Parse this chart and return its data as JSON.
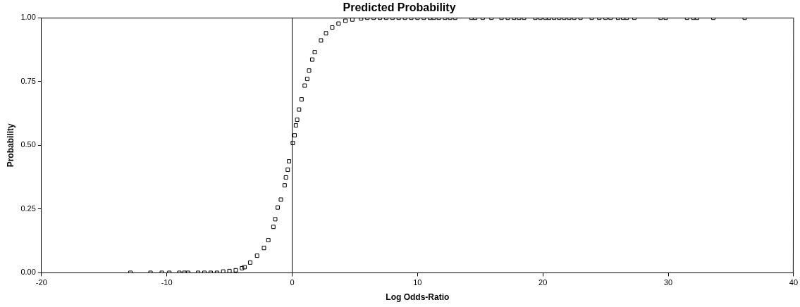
{
  "chart_data": {
    "type": "scatter",
    "title": "Predicted Probability",
    "xlabel": "Log Odds-Ratio",
    "ylabel": "Probability",
    "xlim": [
      -20,
      40
    ],
    "xticks": [
      -20,
      -10,
      0,
      10,
      20,
      30,
      40
    ],
    "ylim": [
      0,
      1
    ],
    "yticks": [
      {
        "value": 0,
        "label": "0.00"
      },
      {
        "value": 0.25,
        "label": "0.25"
      },
      {
        "value": 0.5,
        "label": "0.50"
      },
      {
        "value": 0.75,
        "label": "0.75"
      },
      {
        "value": 1,
        "label": "1.00"
      }
    ],
    "grid": false,
    "legend": false,
    "marker": "square",
    "ref_lines": [
      {
        "axis": "x",
        "value": 0,
        "color": "#000000"
      }
    ],
    "series": [
      {
        "color": "#000000",
        "x": [
          -12.9,
          -11.3,
          -10.4,
          -9.8,
          -9.0,
          -8.6,
          -8.3,
          -7.5,
          -7,
          -6.5,
          -6,
          -5.5,
          -5,
          -4.5,
          -4,
          -3.8,
          -3.35,
          -2.8,
          -2.25,
          -1.9,
          -1.5,
          -1.35,
          -1.15,
          -0.9,
          -0.6,
          -0.5,
          -0.35,
          -0.25,
          0.05,
          0.2,
          0.3,
          0.4,
          0.55,
          0.75,
          1.0,
          1.2,
          1.35,
          1.6,
          1.8,
          2.3,
          2.7,
          3.2,
          3.7,
          4.25,
          4.8,
          5.5,
          6,
          6.5,
          7,
          7.5,
          8,
          8.5,
          9,
          9.5,
          10,
          10.5,
          11,
          11.3,
          11.7,
          12.2,
          12.6,
          13,
          14.3,
          14.6,
          15.2,
          15.9,
          16.7,
          17.2,
          17.7,
          18.1,
          18.5,
          19.4,
          19.8,
          20.2,
          20.5,
          20.9,
          21.3,
          21.7,
          22.1,
          22.5,
          23.0,
          23.9,
          24.5,
          25.0,
          25.4,
          26.0,
          26.4,
          26.7,
          27.3,
          29.4,
          29.8,
          31.5,
          32.0,
          32.3,
          33.6,
          36.1
        ],
        "values": [
          0,
          0,
          0,
          0,
          0,
          0,
          0,
          0,
          0,
          0,
          0,
          0.005,
          0.007,
          0.01,
          0.018,
          0.022,
          0.04,
          0.067,
          0.097,
          0.128,
          0.18,
          0.21,
          0.256,
          0.287,
          0.343,
          0.374,
          0.404,
          0.437,
          0.509,
          0.539,
          0.578,
          0.6,
          0.64,
          0.68,
          0.734,
          0.76,
          0.793,
          0.836,
          0.865,
          0.911,
          0.939,
          0.962,
          0.977,
          0.988,
          0.993,
          0.997,
          1,
          1,
          1,
          1,
          1,
          1,
          1,
          1,
          1,
          1,
          1,
          1,
          1,
          1,
          1,
          1,
          1,
          1,
          1,
          1,
          1,
          1,
          1,
          1,
          1,
          1,
          1,
          1,
          1,
          1,
          1,
          1,
          1,
          1,
          1,
          1,
          1,
          1,
          1,
          1,
          1,
          1,
          1,
          1,
          1,
          1,
          1,
          1,
          1,
          1
        ]
      }
    ]
  }
}
